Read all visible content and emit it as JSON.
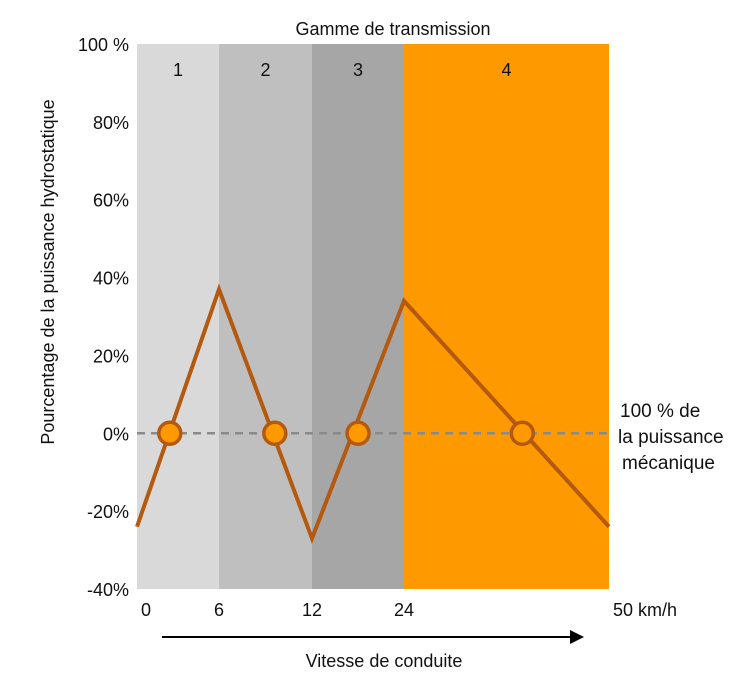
{
  "chart_data": {
    "type": "line",
    "title": "Gamme de transmission",
    "xlabel": "Vitesse de conduite",
    "ylabel": "Pourcentage de la puissance hydrostatique",
    "ylim": [
      -40,
      100
    ],
    "yticks": [
      {
        "value": 100,
        "label": "100 %"
      },
      {
        "value": 80,
        "label": "80%"
      },
      {
        "value": 60,
        "label": "60%"
      },
      {
        "value": 40,
        "label": "40%"
      },
      {
        "value": 20,
        "label": "20%"
      },
      {
        "value": 0,
        "label": "0%"
      },
      {
        "value": -20,
        "label": "-20%"
      },
      {
        "value": -40,
        "label": "-40%"
      }
    ],
    "xticks": [
      {
        "value": 0,
        "label": "0"
      },
      {
        "value": 6,
        "label": "6"
      },
      {
        "value": 12,
        "label": "12"
      },
      {
        "value": 24,
        "label": "24"
      },
      {
        "value": 50,
        "label": "50 km/h"
      }
    ],
    "ranges": [
      {
        "label": "1",
        "x0": 0,
        "x1": 6,
        "color": "#d9d9d9"
      },
      {
        "label": "2",
        "x0": 6,
        "x1": 12,
        "color": "#bfbfbf"
      },
      {
        "label": "3",
        "x0": 12,
        "x1": 24,
        "color": "#a6a6a6"
      },
      {
        "label": "4",
        "x0": 24,
        "x1": 50,
        "color": "#ff9900"
      }
    ],
    "series": [
      {
        "color": "#b35a10",
        "points": [
          [
            0,
            -24
          ],
          [
            6,
            37
          ],
          [
            12,
            -27
          ],
          [
            24,
            34
          ],
          [
            50,
            -24
          ]
        ]
      }
    ],
    "zero_crossings": [
      2.4,
      9.6,
      18.0,
      39.0
    ],
    "reference_line": {
      "y": 0,
      "label_lines": [
        "100 % de",
        "la puissance",
        "mécanique"
      ],
      "color": "#8a8a8a"
    },
    "grid": false,
    "legend": "none",
    "marker_fill": "#ff9900",
    "marker_stroke": "#b35a10"
  }
}
